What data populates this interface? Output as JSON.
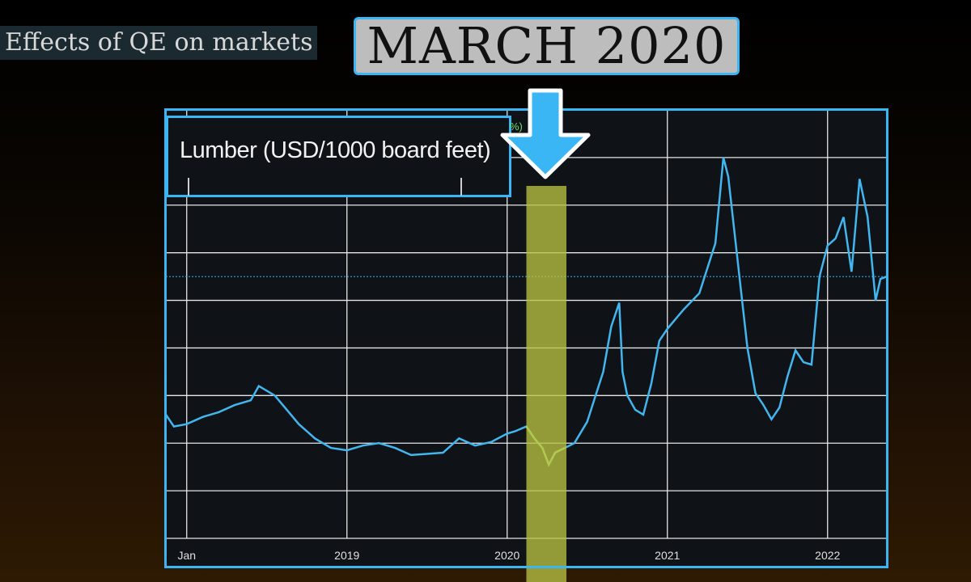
{
  "slide": {
    "title": "Effects of QE on markets"
  },
  "annotation": {
    "label": "MARCH 2020"
  },
  "colors": {
    "accent": "#3ab6f5",
    "highlight": "#b7c142",
    "series": "#41b6ef",
    "highlightSeries": "#9fe07a"
  },
  "chart_data": {
    "type": "line",
    "title": "Lumber (USD/1000 board feet)",
    "fragment": "%)",
    "x_ticks": [
      {
        "label": "Jan",
        "t": 2018.0
      },
      {
        "label": "2019",
        "t": 2019.0
      },
      {
        "label": "2020",
        "t": 2020.0
      },
      {
        "label": "2021",
        "t": 2021.0
      },
      {
        "label": "2022",
        "t": 2022.0
      }
    ],
    "xlim": [
      2017.87,
      2022.37
    ],
    "ylim": [
      0,
      1800
    ],
    "reference_line": 1100,
    "highlight_range": [
      2020.12,
      2020.37
    ],
    "series": [
      {
        "points": [
          [
            2017.87,
            520
          ],
          [
            2017.92,
            470
          ],
          [
            2018.0,
            480
          ],
          [
            2018.1,
            510
          ],
          [
            2018.2,
            530
          ],
          [
            2018.3,
            560
          ],
          [
            2018.4,
            580
          ],
          [
            2018.45,
            640
          ],
          [
            2018.5,
            620
          ],
          [
            2018.55,
            600
          ],
          [
            2018.6,
            560
          ],
          [
            2018.7,
            480
          ],
          [
            2018.8,
            420
          ],
          [
            2018.9,
            380
          ],
          [
            2019.0,
            370
          ],
          [
            2019.1,
            390
          ],
          [
            2019.2,
            400
          ],
          [
            2019.3,
            380
          ],
          [
            2019.4,
            350
          ],
          [
            2019.5,
            355
          ],
          [
            2019.6,
            360
          ],
          [
            2019.7,
            420
          ],
          [
            2019.8,
            390
          ],
          [
            2019.9,
            405
          ],
          [
            2020.0,
            440
          ],
          [
            2020.05,
            450
          ],
          [
            2020.12,
            470
          ],
          [
            2020.17,
            420
          ],
          [
            2020.22,
            380
          ],
          [
            2020.26,
            310
          ],
          [
            2020.3,
            360
          ],
          [
            2020.36,
            380
          ],
          [
            2020.42,
            400
          ],
          [
            2020.5,
            490
          ],
          [
            2020.6,
            700
          ],
          [
            2020.65,
            890
          ],
          [
            2020.7,
            990
          ],
          [
            2020.72,
            700
          ],
          [
            2020.75,
            600
          ],
          [
            2020.8,
            540
          ],
          [
            2020.85,
            520
          ],
          [
            2020.9,
            650
          ],
          [
            2020.95,
            830
          ],
          [
            2021.0,
            880
          ],
          [
            2021.05,
            920
          ],
          [
            2021.1,
            960
          ],
          [
            2021.2,
            1030
          ],
          [
            2021.3,
            1240
          ],
          [
            2021.35,
            1600
          ],
          [
            2021.38,
            1520
          ],
          [
            2021.45,
            1100
          ],
          [
            2021.5,
            800
          ],
          [
            2021.55,
            610
          ],
          [
            2021.6,
            560
          ],
          [
            2021.65,
            500
          ],
          [
            2021.7,
            550
          ],
          [
            2021.75,
            680
          ],
          [
            2021.8,
            790
          ],
          [
            2021.85,
            740
          ],
          [
            2021.9,
            730
          ],
          [
            2021.95,
            1100
          ],
          [
            2022.0,
            1230
          ],
          [
            2022.05,
            1260
          ],
          [
            2022.1,
            1350
          ],
          [
            2022.15,
            1120
          ],
          [
            2022.2,
            1510
          ],
          [
            2022.25,
            1350
          ],
          [
            2022.3,
            1000
          ],
          [
            2022.33,
            1090
          ],
          [
            2022.37,
            1100
          ]
        ]
      }
    ]
  }
}
